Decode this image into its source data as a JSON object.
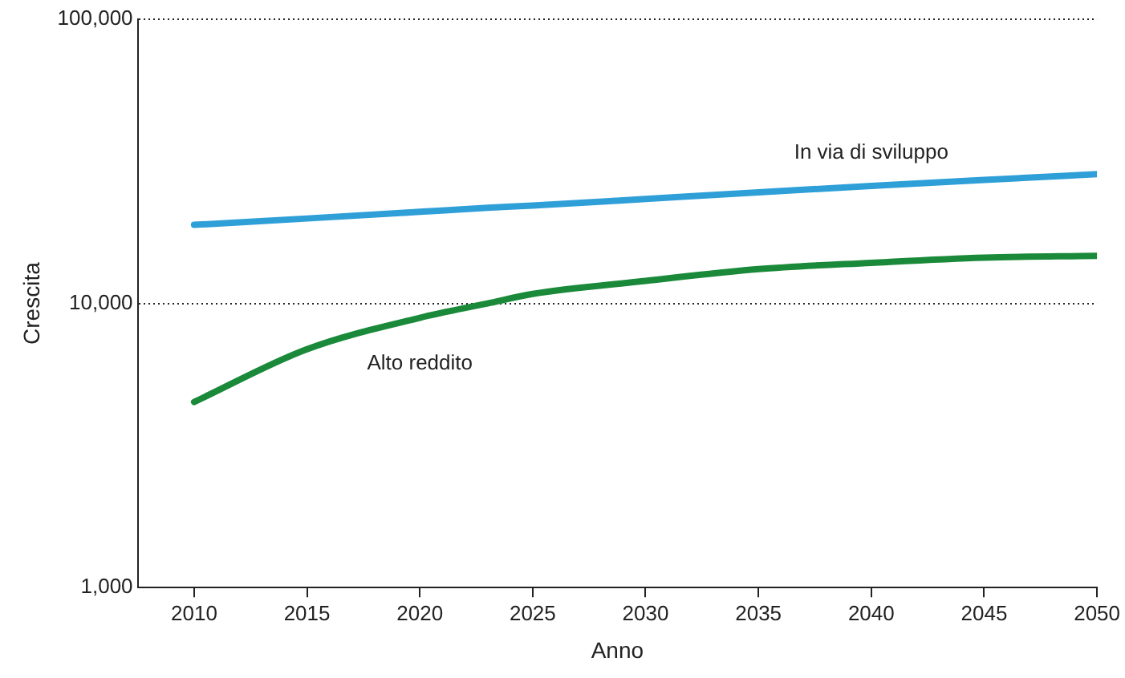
{
  "chart_data": {
    "type": "line",
    "xlabel": "Anno",
    "ylabel": "Crescita",
    "x": [
      2010,
      2015,
      2020,
      2023,
      2025,
      2030,
      2035,
      2040,
      2045,
      2050
    ],
    "series": [
      {
        "name": "In via di sviluppo",
        "color": "#2f9fd8",
        "values": [
          18900,
          19900,
          21000,
          21700,
          22100,
          23300,
          24600,
          25900,
          27200,
          28500
        ]
      },
      {
        "name": "Alto reddito",
        "color": "#1a8a3a",
        "values": [
          4500,
          6900,
          8900,
          10000,
          10800,
          12000,
          13200,
          13900,
          14500,
          14700
        ]
      }
    ],
    "log": "y",
    "xlim": [
      2007.5,
      2050
    ],
    "xticks": [
      2010,
      2015,
      2020,
      2025,
      2030,
      2035,
      2040,
      2045,
      2050
    ],
    "ylim": [
      1000,
      100000
    ],
    "yticks": [
      {
        "value": 1000,
        "label": "1,000"
      },
      {
        "value": 10000,
        "label": "10,000"
      },
      {
        "value": 100000,
        "label": "100,000"
      }
    ],
    "grid": "y",
    "legend": false,
    "marker": "none",
    "line_style": "solid"
  }
}
